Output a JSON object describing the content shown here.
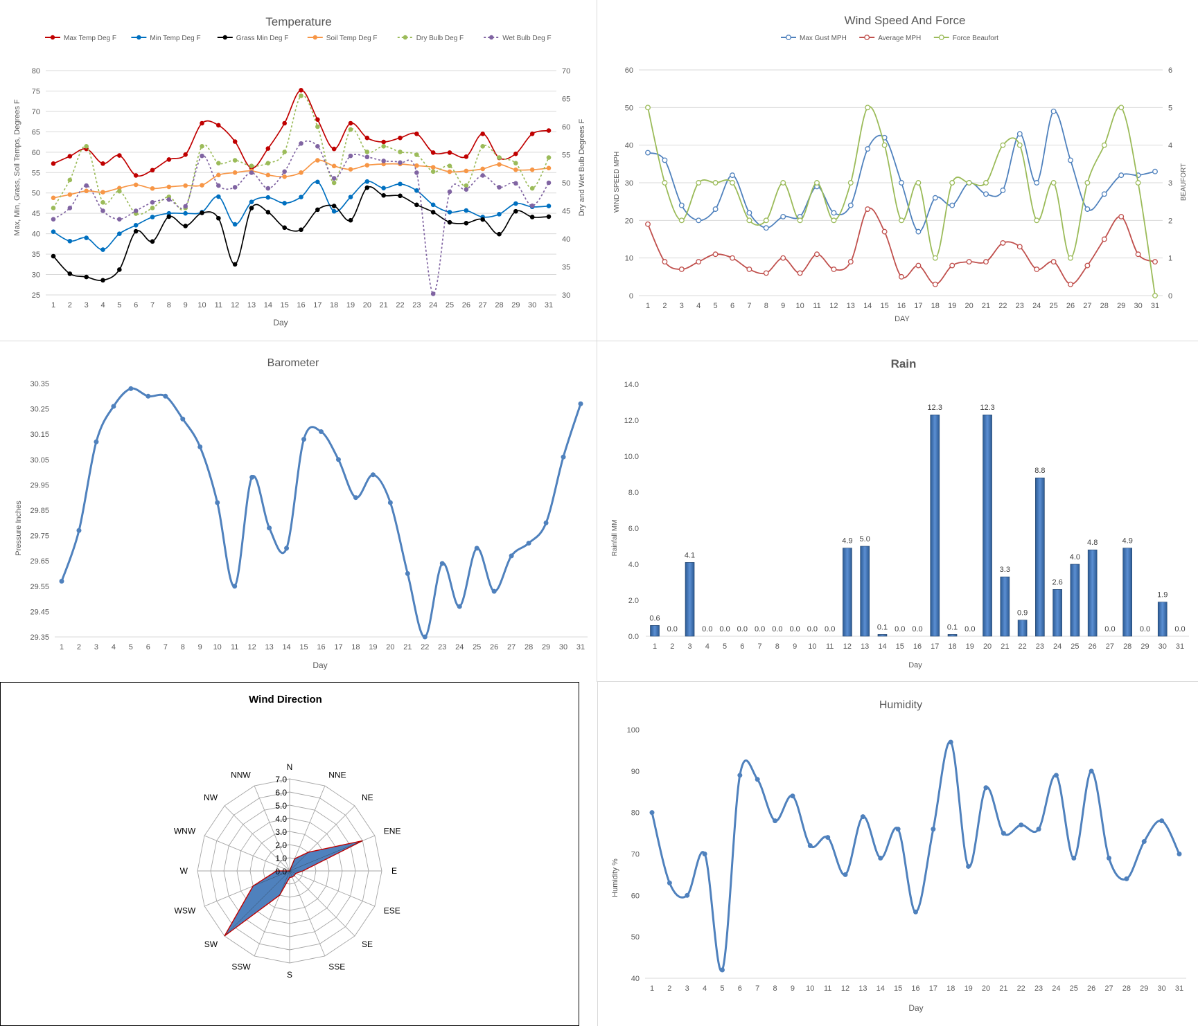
{
  "charts": {
    "temperature": {
      "title": "Temperature",
      "xlabel": "Day",
      "ylabel_left": "Max, Min, Grass, Soil Temps, Degrees F",
      "ylabel_right": "Dry and Wet Bulb Degrees F"
    },
    "wind": {
      "title": "Wind Speed And Force",
      "xlabel": "DAY",
      "ylabel_left": "WIND SPEED MPH",
      "ylabel_right": "BEAUFORT"
    },
    "barometer": {
      "title": "Barometer",
      "xlabel": "Day",
      "ylabel": "Pressure Inches"
    },
    "rain": {
      "title": "Rain",
      "xlabel": "Day",
      "ylabel": "Rainfall MM"
    },
    "direction": {
      "title": "Wind Direction"
    },
    "humidity": {
      "title": "Humidity",
      "xlabel": "Day",
      "ylabel": "Humidity %"
    }
  },
  "chart_data": [
    {
      "type": "line",
      "title": "Temperature",
      "xlabel": "Day",
      "ylabel": "Max, Min, Grass, Soil Temps, Degrees F",
      "y2label": "Dry and Wet Bulb Degrees F",
      "x": [
        1,
        2,
        3,
        4,
        5,
        6,
        7,
        8,
        9,
        10,
        11,
        12,
        13,
        14,
        15,
        16,
        17,
        18,
        19,
        20,
        21,
        22,
        23,
        24,
        25,
        26,
        27,
        28,
        29,
        30,
        31
      ],
      "ylim": [
        25,
        80
      ],
      "yticks": [
        25,
        30,
        35,
        40,
        45,
        50,
        55,
        60,
        65,
        70,
        75,
        80
      ],
      "y2lim": [
        30,
        70
      ],
      "y2ticks": [
        30,
        35,
        40,
        45,
        50,
        55,
        60,
        65,
        70
      ],
      "legend": "top",
      "grid": "horizontal",
      "series": [
        {
          "name": "Max Temp Deg F",
          "color": "#c00000",
          "axis": "left",
          "dash": false,
          "values": [
            57.2,
            59.0,
            60.8,
            57.2,
            59.2,
            54.3,
            55.6,
            58.2,
            59.4,
            67.1,
            66.6,
            62.6,
            56.1,
            60.9,
            67.1,
            75.2,
            68.0,
            60.8,
            67.1,
            63.5,
            62.5,
            63.5,
            64.5,
            59.9,
            59.9,
            58.9,
            64.5,
            58.6,
            59.6,
            64.5,
            65.3
          ]
        },
        {
          "name": "Min Temp Deg F",
          "color": "#0070c0",
          "axis": "left",
          "dash": false,
          "values": [
            40.5,
            38.2,
            39.0,
            36.1,
            40.0,
            42.1,
            44.1,
            45.0,
            45.0,
            45.3,
            49.1,
            42.3,
            47.8,
            48.9,
            47.5,
            49.0,
            52.7,
            45.5,
            49.0,
            52.8,
            51.2,
            52.2,
            50.6,
            47.1,
            45.3,
            45.7,
            44.1,
            44.8,
            47.4,
            46.6,
            46.8
          ]
        },
        {
          "name": "Grass Min Deg F",
          "color": "#000000",
          "axis": "left",
          "dash": false,
          "values": [
            34.5,
            30.2,
            29.4,
            28.6,
            31.2,
            40.6,
            38.1,
            44.2,
            41.9,
            45.1,
            43.8,
            32.5,
            46.3,
            45.3,
            41.5,
            41.0,
            45.9,
            46.8,
            43.3,
            51.3,
            49.4,
            49.3,
            47.1,
            45.3,
            42.8,
            42.6,
            43.5,
            39.9,
            45.5,
            44.1,
            44.2
          ]
        },
        {
          "name": "Soil Temp Deg F",
          "color": "#f79646",
          "axis": "left",
          "dash": false,
          "values": [
            48.8,
            49.6,
            50.5,
            50.2,
            51.2,
            52.0,
            51.1,
            51.5,
            51.8,
            51.9,
            54.4,
            55.0,
            55.4,
            54.4,
            54.0,
            55.0,
            58.0,
            56.6,
            55.8,
            56.8,
            57.1,
            57.1,
            56.7,
            56.3,
            55.2,
            55.4,
            55.9,
            57.0,
            55.7,
            55.7,
            56.1
          ]
        },
        {
          "name": "Dry Bulb Deg F",
          "color": "#9bbb59",
          "axis": "right",
          "dash": true,
          "values": [
            45.5,
            50.5,
            56.5,
            46.5,
            48.5,
            44.5,
            45.5,
            47.5,
            45.5,
            56.5,
            53.5,
            54.0,
            53.0,
            53.5,
            55.5,
            65.5,
            60.0,
            50.0,
            59.5,
            55.5,
            56.5,
            55.5,
            55.0,
            52.0,
            53.0,
            49.5,
            56.5,
            54.5,
            53.5,
            49.0,
            54.5
          ]
        },
        {
          "name": "Wet Bulb Deg F",
          "color": "#8064a2",
          "axis": "right",
          "dash": true,
          "values": [
            43.5,
            45.5,
            49.5,
            45.0,
            43.5,
            45.0,
            46.5,
            47.0,
            45.8,
            54.8,
            49.5,
            49.2,
            51.8,
            49.0,
            52.0,
            57.0,
            56.5,
            50.8,
            54.8,
            54.6,
            53.9,
            53.6,
            51.8,
            30.2,
            48.4,
            48.8,
            51.3,
            49.2,
            49.9,
            45.9,
            50.0
          ]
        }
      ]
    },
    {
      "type": "line",
      "title": "Wind Speed And Force",
      "xlabel": "DAY",
      "ylabel": "WIND SPEED MPH",
      "y2label": "BEAUFORT",
      "x": [
        1,
        2,
        3,
        4,
        5,
        6,
        7,
        8,
        9,
        10,
        11,
        12,
        13,
        14,
        15,
        16,
        17,
        18,
        19,
        20,
        21,
        22,
        23,
        24,
        25,
        26,
        27,
        28,
        29,
        30,
        31
      ],
      "ylim": [
        0,
        60
      ],
      "yticks": [
        0,
        10,
        20,
        30,
        40,
        50,
        60
      ],
      "y2lim": [
        0,
        6
      ],
      "y2ticks": [
        0,
        1,
        2,
        3,
        4,
        5,
        6
      ],
      "legend": "top",
      "grid": "horizontal",
      "series": [
        {
          "name": "Max Gust MPH",
          "color": "#4f81bd",
          "axis": "left",
          "values": [
            38,
            36,
            24,
            20,
            23,
            32,
            22,
            18,
            21,
            21,
            29,
            22,
            24,
            39,
            42,
            30,
            17,
            26,
            24,
            30,
            27,
            28,
            43,
            30,
            49,
            36,
            23,
            27,
            32,
            32,
            33
          ]
        },
        {
          "name": "Average MPH",
          "color": "#c0504d",
          "axis": "left",
          "values": [
            19,
            9,
            7,
            9,
            11,
            10,
            7,
            6,
            10,
            6,
            11,
            7,
            9,
            23,
            17,
            5,
            8,
            3,
            8,
            9,
            9,
            14,
            13,
            7,
            9,
            3,
            8,
            15,
            21,
            11,
            9
          ]
        },
        {
          "name": "Force Beaufort",
          "color": "#9bbb59",
          "axis": "right",
          "values": [
            5,
            3,
            2,
            3,
            3,
            3,
            2,
            2,
            3,
            2,
            3,
            2,
            3,
            5,
            4,
            2,
            3,
            1,
            3,
            3,
            3,
            4,
            4,
            2,
            3,
            1,
            3,
            4,
            5,
            3,
            0
          ]
        }
      ]
    },
    {
      "type": "line",
      "title": "Barometer",
      "xlabel": "Day",
      "ylabel": "Pressure Inches",
      "x": [
        1,
        2,
        3,
        4,
        5,
        6,
        7,
        8,
        9,
        10,
        11,
        12,
        13,
        14,
        15,
        16,
        17,
        18,
        19,
        20,
        21,
        22,
        23,
        24,
        25,
        26,
        27,
        28,
        29,
        30,
        31
      ],
      "ylim": [
        29.35,
        30.35
      ],
      "yticks": [
        "29.35",
        "29.45",
        "29.55",
        "29.65",
        "29.75",
        "29.85",
        "29.95",
        "30.05",
        "30.15",
        "30.25",
        "30.35"
      ],
      "grid": "none",
      "series": [
        {
          "name": "",
          "color": "#4f81bd",
          "values": [
            29.57,
            29.77,
            30.12,
            30.26,
            30.33,
            30.3,
            30.3,
            30.21,
            30.1,
            29.88,
            29.55,
            29.98,
            29.78,
            29.7,
            30.13,
            30.16,
            30.05,
            29.9,
            29.99,
            29.88,
            29.6,
            29.35,
            29.64,
            29.47,
            29.7,
            29.53,
            29.67,
            29.72,
            29.8,
            30.06,
            30.27
          ]
        }
      ]
    },
    {
      "type": "bar",
      "title": "Rain",
      "xlabel": "Day",
      "ylabel": "Rainfall MM",
      "categories": [
        "1",
        "2",
        "3",
        "4",
        "5",
        "6",
        "7",
        "8",
        "9",
        "10",
        "11",
        "12",
        "13",
        "14",
        "15",
        "16",
        "17",
        "18",
        "19",
        "20",
        "21",
        "22",
        "23",
        "24",
        "25",
        "26",
        "27",
        "28",
        "29",
        "30",
        "31"
      ],
      "values": [
        0.6,
        0.0,
        4.1,
        0.0,
        0.0,
        0.0,
        0.0,
        0.0,
        0.0,
        0.0,
        0.0,
        4.9,
        5.0,
        0.1,
        0.0,
        0.0,
        12.3,
        0.1,
        0.0,
        12.3,
        3.3,
        0.9,
        8.8,
        2.6,
        4.0,
        4.8,
        0.0,
        4.9,
        0.0,
        1.9,
        0.0
      ],
      "labels": [
        "0.6",
        "0.0",
        "4.1",
        "0.0",
        "0.0",
        "0.0",
        "0.0",
        "0.0",
        "0.0",
        "0.0",
        "0.0",
        "4.9",
        "5.0",
        "0.1",
        "0.0",
        "0.0",
        "12.3",
        "0.1",
        "0.0",
        "12.3",
        "3.3",
        "0.9",
        "8.8",
        "2.6",
        "4.0",
        "4.8",
        "0.0",
        "4.9",
        "0.0",
        "1.9",
        "0.0"
      ],
      "ylim": [
        0,
        14
      ],
      "yticks": [
        "0.0",
        "2.0",
        "4.0",
        "6.0",
        "8.0",
        "10.0",
        "12.0",
        "14.0"
      ],
      "color": "#4f81bd",
      "grid": "none"
    },
    {
      "type": "radar",
      "title": "Wind Direction",
      "categories": [
        "N",
        "NNE",
        "NE",
        "ENE",
        "E",
        "ESE",
        "SE",
        "SSE",
        "S",
        "SSW",
        "SW",
        "WSW",
        "W",
        "WNW",
        "NW",
        "NNW"
      ],
      "values": [
        0.0,
        1.0,
        2.0,
        6.0,
        1.0,
        0.5,
        0.5,
        0.5,
        0.5,
        2.0,
        7.0,
        3.0,
        1.0,
        0.0,
        0.0,
        0.0
      ],
      "ticks": [
        "0.0",
        "1.0",
        "2.0",
        "3.0",
        "4.0",
        "5.0",
        "6.0",
        "7.0"
      ],
      "rlim": [
        0,
        7
      ],
      "fill": "#4f81bd",
      "stroke": "#c00000"
    },
    {
      "type": "line",
      "title": "Humidity",
      "xlabel": "Day",
      "ylabel": "Humidity %",
      "x": [
        1,
        2,
        3,
        4,
        5,
        6,
        7,
        8,
        9,
        10,
        11,
        12,
        13,
        14,
        15,
        16,
        17,
        18,
        19,
        20,
        21,
        22,
        23,
        24,
        25,
        26,
        27,
        28,
        29,
        30,
        31
      ],
      "ylim": [
        40,
        100
      ],
      "yticks": [
        40,
        50,
        60,
        70,
        80,
        90,
        100
      ],
      "grid": "none",
      "series": [
        {
          "name": "",
          "color": "#4f81bd",
          "values": [
            80,
            63,
            60,
            70,
            42,
            89,
            88,
            78,
            84,
            72,
            74,
            65,
            79,
            69,
            76,
            56,
            76,
            97,
            67,
            86,
            75,
            77,
            76,
            89,
            69,
            90,
            69,
            64,
            73,
            78,
            70
          ]
        }
      ]
    }
  ]
}
